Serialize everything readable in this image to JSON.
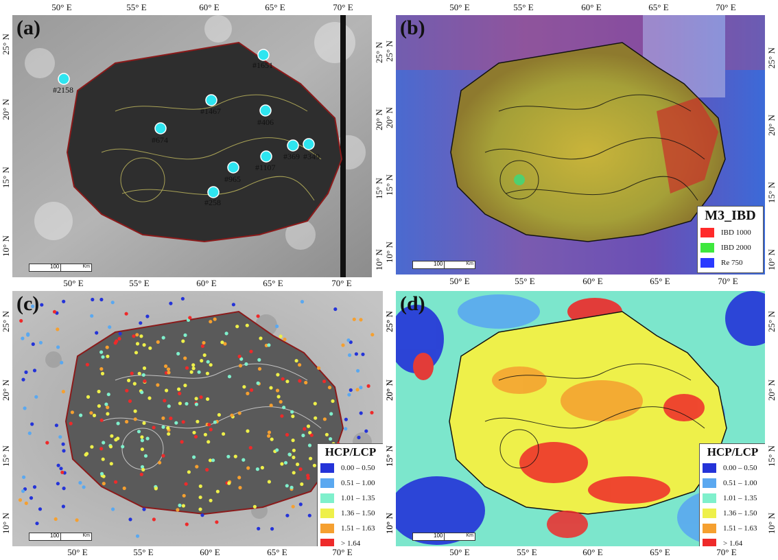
{
  "lon_ticks": [
    "50° E",
    "55° E",
    "60° E",
    "65° E",
    "70° E"
  ],
  "lat_ticks": [
    "25° N",
    "20° N",
    "15° N",
    "10° N"
  ],
  "panels": {
    "a": {
      "label": "(a)"
    },
    "b": {
      "label": "(b)"
    },
    "c": {
      "label": "(c)"
    },
    "d": {
      "label": "(d)"
    }
  },
  "scalebar": {
    "value": "100",
    "unit": "Km"
  },
  "sites": [
    "#2158",
    "#1651",
    "#1467",
    "#406",
    "#674",
    "#369",
    "#349",
    "#1107",
    "#965",
    "#258"
  ],
  "m3_legend": {
    "title": "M3_IBD",
    "items": [
      {
        "label": "IBD 1000",
        "color": "#ff2a2a"
      },
      {
        "label": "IBD 2000",
        "color": "#3ee83e"
      },
      {
        "label": "Re 750",
        "color": "#2a3aff"
      }
    ]
  },
  "hcp_legend": {
    "title": "HCP/LCP",
    "items": [
      {
        "label": "0.00 – 0.50",
        "color": "#2433d8"
      },
      {
        "label": "0.51 – 1.00",
        "color": "#5aa8f0"
      },
      {
        "label": "1.01 – 1.35",
        "color": "#7ff0cc"
      },
      {
        "label": "1.36 – 1.50",
        "color": "#eef04a"
      },
      {
        "label": "1.51 – 1.63",
        "color": "#f5a030"
      },
      {
        "label": "> 1.64",
        "color": "#ee2a2a"
      }
    ]
  }
}
